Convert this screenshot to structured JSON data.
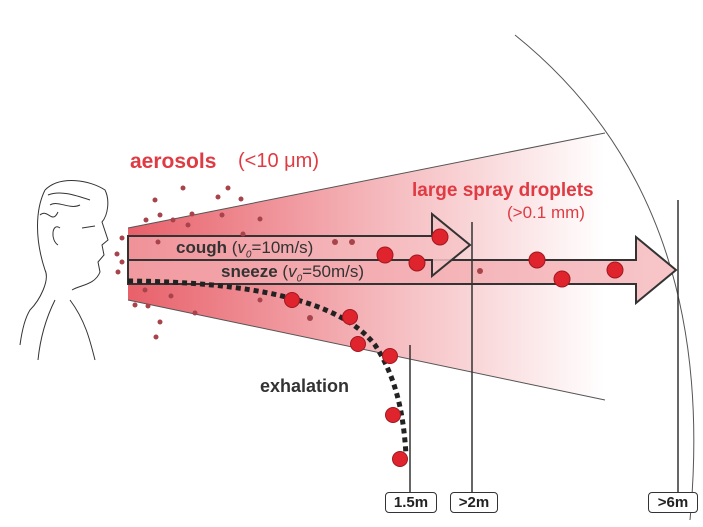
{
  "labels": {
    "aerosols": "aerosols",
    "aerosols_size": "(<10 μm)",
    "large_droplets": "large spray droplets",
    "large_droplets_size": "(>0.1 mm)",
    "cough": "cough",
    "cough_v": "v",
    "cough_sub": "0",
    "cough_value": "=10m/s)",
    "sneeze": "sneeze",
    "sneeze_v": "v",
    "sneeze_sub": "0",
    "sneeze_value": "=50m/s)",
    "exhalation": "exhalation"
  },
  "distances": [
    "1.5m",
    ">2m",
    ">6m"
  ],
  "colors": {
    "accent": "#e03a43",
    "droplet": "#e0242e",
    "aerosol_dot": "#a8434b",
    "cone": "#e8606a"
  }
}
